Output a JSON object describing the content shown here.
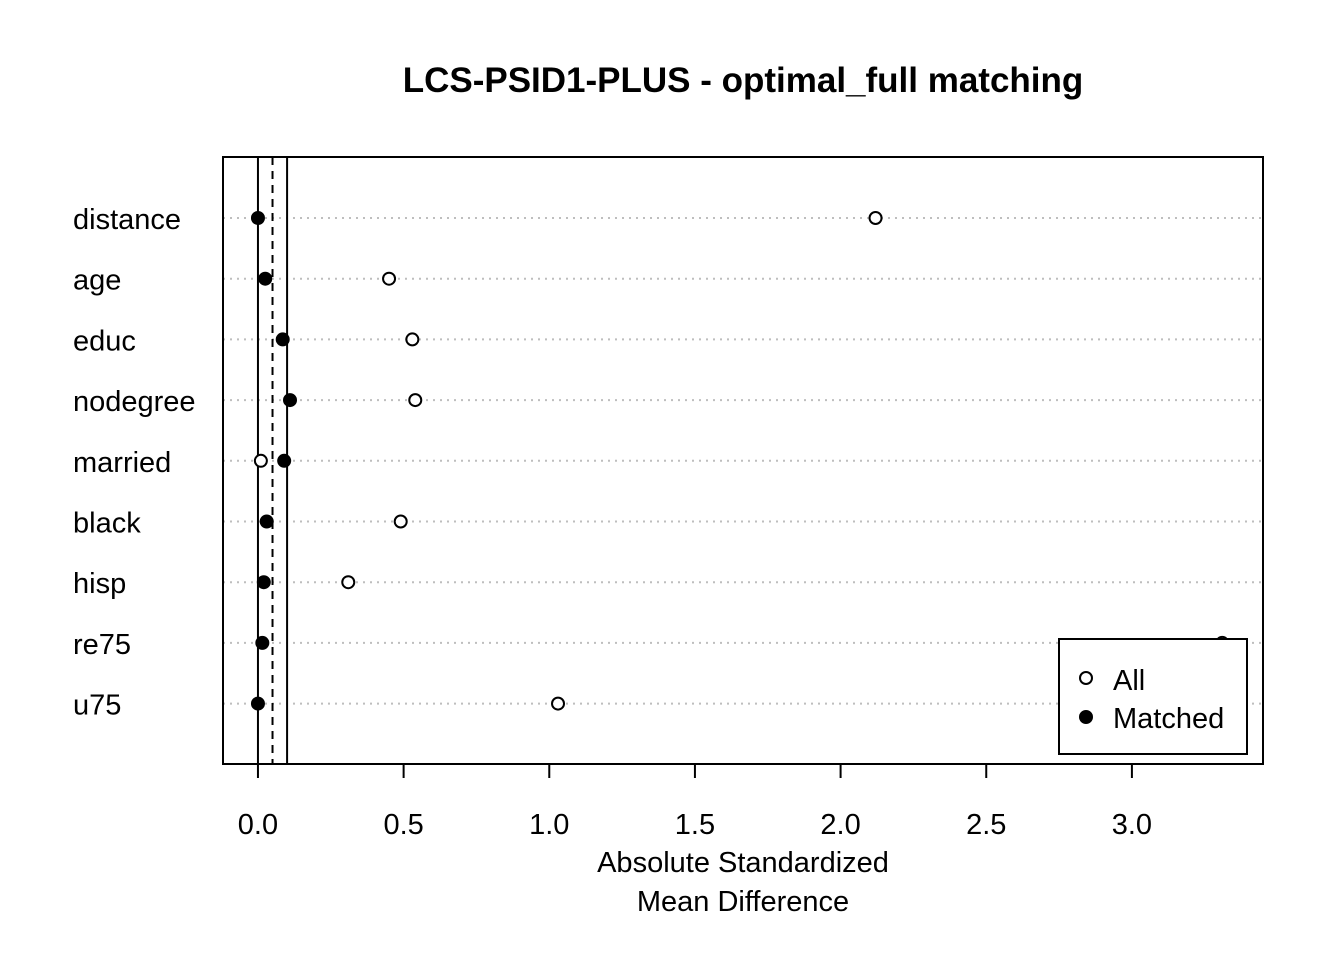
{
  "chart_data": {
    "type": "scatter",
    "title": "LCS-PSID1-PLUS - optimal_full matching",
    "xlabel": [
      "Absolute Standardized",
      "Mean Difference"
    ],
    "ylabel": "",
    "xlim": [
      -0.12,
      3.45
    ],
    "x_ticks": [
      0.0,
      0.5,
      1.0,
      1.5,
      2.0,
      2.5,
      3.0
    ],
    "x_tick_labels": [
      "0.0",
      "0.5",
      "1.0",
      "1.5",
      "2.0",
      "2.5",
      "3.0"
    ],
    "categories": [
      "distance",
      "age",
      "educ",
      "nodegree",
      "married",
      "black",
      "hisp",
      "re75",
      "u75"
    ],
    "series": [
      {
        "name": "All",
        "marker": "open-circle",
        "values": [
          2.12,
          0.45,
          0.53,
          0.54,
          0.01,
          0.49,
          0.31,
          3.31,
          1.03
        ]
      },
      {
        "name": "Matched",
        "marker": "filled-circle",
        "values": [
          0.0,
          0.025,
          0.085,
          0.11,
          0.09,
          0.03,
          0.02,
          0.015,
          0.0
        ]
      }
    ],
    "reference_lines": [
      {
        "x": 0.0,
        "style": "solid"
      },
      {
        "x": 0.05,
        "style": "dashed"
      },
      {
        "x": 0.1,
        "style": "solid"
      }
    ],
    "grid": "horizontal-dotted",
    "legend_position": "bottom-right",
    "colors": {
      "foreground": "#000000",
      "grid": "#bebebe",
      "background": "#ffffff"
    }
  }
}
